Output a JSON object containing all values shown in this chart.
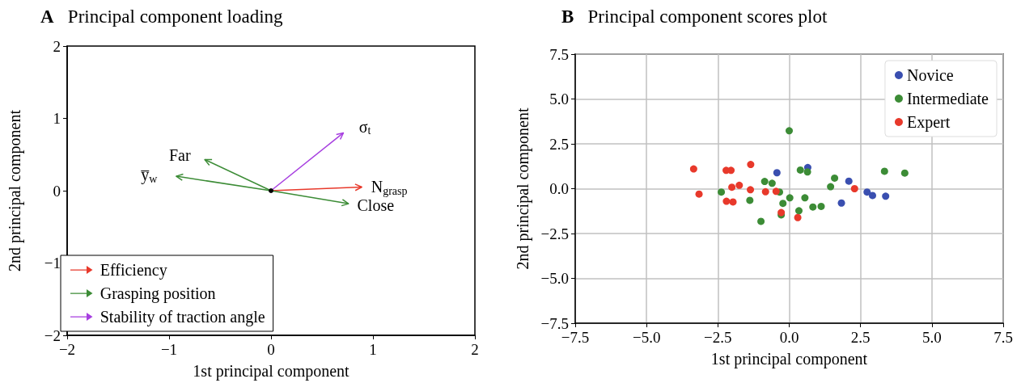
{
  "chart_data": [
    {
      "type": "line",
      "title": "A Principal component loading",
      "xlabel": "1st principal component",
      "ylabel": "2nd principal component",
      "xlim": [
        -2,
        2
      ],
      "ylim": [
        -2,
        2
      ],
      "xticks": [
        {
          "value": -2,
          "label": "−2"
        },
        {
          "value": -1,
          "label": "−1"
        },
        0,
        1,
        2
      ],
      "yticks": [
        {
          "value": -2,
          "label": "−2"
        },
        {
          "value": -1,
          "label": "−1"
        },
        0,
        1,
        2
      ],
      "grid": false,
      "legend": "bottom left",
      "series": [
        {
          "name": "Efficiency",
          "color": "#e8392b",
          "x": [
            0,
            0.89
          ],
          "values": [
            0,
            0.05
          ]
        },
        {
          "name": "Grasping position",
          "color": "#3c8c36",
          "x": [
            0,
            -0.65
          ],
          "values": [
            0,
            0.43
          ]
        },
        {
          "color": "#3c8c36",
          "x": [
            0,
            -0.93
          ],
          "values": [
            0,
            0.2
          ]
        },
        {
          "color": "#3c8c36",
          "x": [
            0,
            0.76
          ],
          "values": [
            0,
            -0.18
          ]
        },
        {
          "name": "Stability of traction angle",
          "color": "#a73fe0",
          "x": [
            0,
            0.71
          ],
          "values": [
            0,
            0.8
          ]
        },
        {
          "type": "scatter",
          "color": "#000000",
          "x": [
            0
          ],
          "values": [
            0
          ]
        }
      ],
      "annotations": [
        "N$_{grasp}$",
        "Far",
        "y̅$_{w}$",
        "Close",
        "σ$_{t}$"
      ]
    },
    {
      "type": "scatter",
      "title": "B Principal component scores plot",
      "xlabel": "1st principal component",
      "ylabel": "2nd principal component",
      "xlim": [
        -7.5,
        7.5
      ],
      "ylim": [
        -7.5,
        7.5
      ],
      "xticks": [
        {
          "value": -7.5,
          "label": "−7.5"
        },
        {
          "value": -5,
          "label": "−5.0"
        },
        {
          "value": -2.5,
          "label": "−2.5"
        },
        {
          "value": 0,
          "label": "0.0"
        },
        2.5,
        {
          "value": 5,
          "label": "5.0"
        },
        7.5
      ],
      "yticks": [
        {
          "value": -7.5,
          "label": "−7.5"
        },
        {
          "value": -5,
          "label": "−5.0"
        },
        {
          "value": -2.5,
          "label": "−2.5"
        },
        {
          "value": 0,
          "label": "0.0"
        },
        2.5,
        {
          "value": 5,
          "label": "5.0"
        },
        7.5
      ],
      "grid": true,
      "legend": "top right",
      "marker": "circle",
      "series": [
        {
          "name": "Novice",
          "color": "#3a4fb0",
          "x": [
            -0.43,
            0.65,
            2.09,
            1.83,
            2.73,
            2.92,
            3.38
          ],
          "values": [
            0.89,
            1.18,
            0.42,
            -0.8,
            -0.19,
            -0.38,
            -0.42
          ]
        },
        {
          "name": "Intermediate",
          "color": "#3c8c36",
          "x": [
            0,
            -2.38,
            -0.86,
            -0.6,
            -0.34,
            -0.22,
            -1.38,
            -0.99,
            -0.28,
            0.02,
            0.34,
            0.39,
            0.64,
            0.55,
            0.83,
            1.12,
            1.45,
            1.59,
            3.34,
            4.05
          ],
          "values": [
            3.23,
            -0.19,
            0.4,
            0.3,
            -0.19,
            -0.82,
            -0.65,
            -1.82,
            -1.46,
            -0.51,
            -1.23,
            1.04,
            0.93,
            -0.51,
            -1.02,
            -0.99,
            0.11,
            0.59,
            0.97,
            0.87
          ]
        },
        {
          "name": "Expert",
          "color": "#e8392b",
          "x": [
            -3.35,
            -3.16,
            -2.21,
            -2.04,
            -1.35,
            -2.01,
            -1.75,
            -1.36,
            -2.2,
            -1.97,
            -0.83,
            -0.46,
            -0.28,
            0.3,
            2.29
          ],
          "values": [
            1.1,
            -0.3,
            1.02,
            1.02,
            1.35,
            0.08,
            0.19,
            -0.06,
            -0.7,
            -0.74,
            -0.17,
            -0.15,
            -1.33,
            -1.61,
            0
          ]
        }
      ]
    }
  ]
}
